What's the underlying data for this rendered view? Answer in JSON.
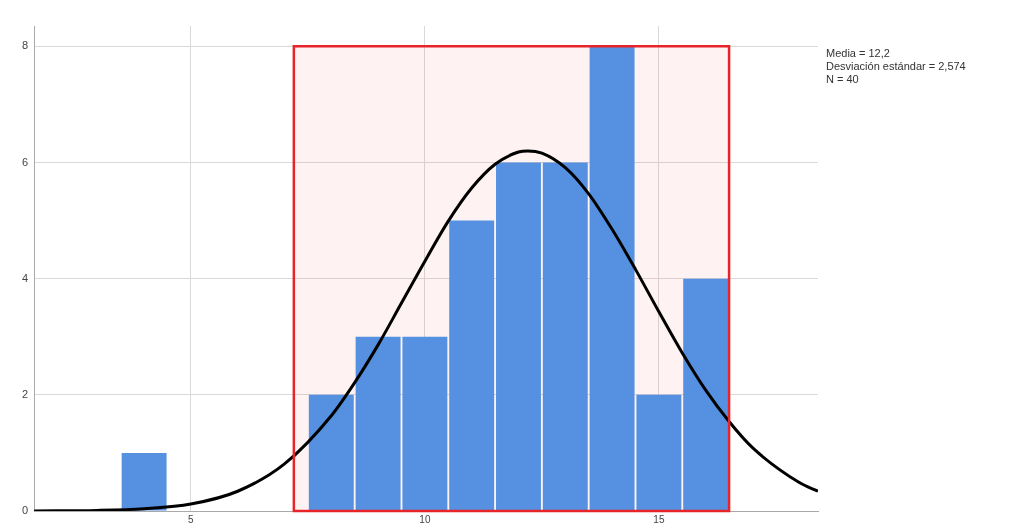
{
  "chart_data": {
    "type": "histogram",
    "bins": [
      3.5,
      4.5,
      5.5,
      6.5,
      7.5,
      8.5,
      9.5,
      10.5,
      11.5,
      12.5,
      13.5,
      14.5,
      15.5,
      16.5
    ],
    "values": [
      1,
      0,
      0,
      0,
      2,
      3,
      3,
      5,
      6,
      6,
      8,
      2,
      4
    ],
    "color": "#5591e0",
    "series": [
      {
        "type": "line",
        "color": "#000000",
        "x": [
          1.65,
          3,
          4,
          5,
          6,
          7,
          8,
          8.5,
          9,
          9.5,
          10,
          10.5,
          11,
          11.5,
          12,
          12.2,
          12.5,
          13,
          13.5,
          14,
          14.5,
          15,
          15.5,
          16,
          16.5,
          17,
          18,
          18.4
        ],
        "values": [
          0,
          0.01,
          0.04,
          0.12,
          0.34,
          0.81,
          1.64,
          2.21,
          2.86,
          3.58,
          4.3,
          4.99,
          5.56,
          5.97,
          6.18,
          6.2,
          6.16,
          5.91,
          5.46,
          4.85,
          4.16,
          3.43,
          2.72,
          2.08,
          1.54,
          1.09,
          0.49,
          0.34
        ]
      }
    ],
    "xlim": [
      1.65,
      18.4
    ],
    "xticks": [
      5,
      10,
      15
    ],
    "ylim": [
      0,
      8.35
    ],
    "yticks": [
      0,
      2,
      4,
      6,
      8
    ],
    "grid": true,
    "bands": [
      {
        "axis": "x",
        "from": 7.2,
        "to": 16.5,
        "color": "#e8242b"
      }
    ],
    "annotations": [
      "Media = 12,2",
      "Desviación estándar = 2,574",
      "N = 40"
    ]
  }
}
